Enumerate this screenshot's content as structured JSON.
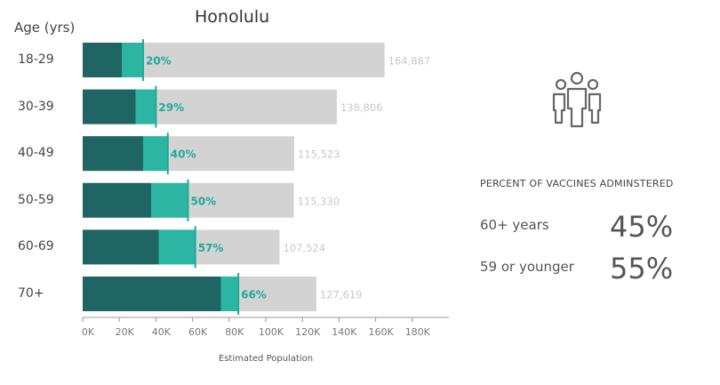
{
  "chart_data": {
    "type": "bar",
    "title": "Honolulu",
    "row_header": "Age (yrs)",
    "xlabel": "Estimated Population",
    "xlim": [
      0,
      200000
    ],
    "x_ticks": [
      "0K",
      "20K",
      "40K",
      "60K",
      "80K",
      "100K",
      "120K",
      "140K",
      "160K",
      "180K"
    ],
    "x_tick_values": [
      0,
      20000,
      40000,
      60000,
      80000,
      100000,
      120000,
      140000,
      160000,
      180000
    ],
    "categories": [
      "18-29",
      "30-39",
      "40-49",
      "50-59",
      "60-69",
      "70+"
    ],
    "population": [
      164887,
      138806,
      115523,
      115330,
      107524,
      127619
    ],
    "population_labels": [
      "164,887",
      "138,806",
      "115,523",
      "115,330",
      "107,524",
      "127,619"
    ],
    "dark_segment": [
      21500,
      29000,
      33000,
      37500,
      41500,
      75500
    ],
    "teal_segment": [
      11500,
      11000,
      13500,
      20000,
      20000,
      9500
    ],
    "percent_vaccinated": [
      20,
      29,
      40,
      50,
      57,
      66
    ],
    "percent_labels": [
      "20%",
      "29%",
      "40%",
      "50%",
      "57%",
      "66%"
    ],
    "colors": {
      "dark": "#1f6564",
      "teal": "#2bb5a2",
      "population": "#d3d3d3",
      "marker": "#1faa98",
      "axis": "#999999"
    }
  },
  "side_panel": {
    "heading": "PERCENT OF VACCINES ADMINSTERED",
    "stats": [
      {
        "label": "60+ years",
        "value": "45%"
      },
      {
        "label": "59 or younger",
        "value": "55%"
      }
    ],
    "icon": "people-group-icon"
  }
}
